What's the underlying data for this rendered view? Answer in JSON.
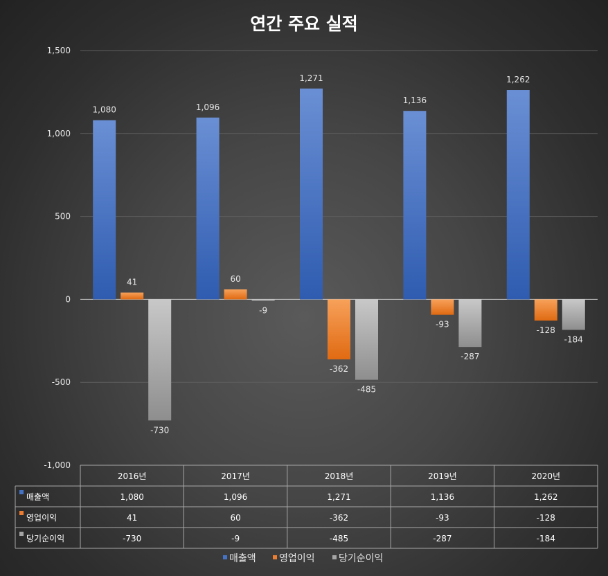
{
  "chart_data": {
    "type": "bar",
    "title": "연간 주요 실적",
    "categories": [
      "2016년",
      "2017년",
      "2018년",
      "2019년",
      "2020년"
    ],
    "series": [
      {
        "name": "매출액",
        "values": [
          1080,
          1096,
          1271,
          1136,
          1262
        ],
        "labels": [
          "1,080",
          "1,096",
          "1,271",
          "1,136",
          "1,262"
        ],
        "color": "#4472C4"
      },
      {
        "name": "영업이익",
        "values": [
          41,
          60,
          -362,
          -93,
          -128
        ],
        "labels": [
          "41",
          "60",
          "-362",
          "-93",
          "-128"
        ],
        "color": "#ED7D31"
      },
      {
        "name": "당기순이익",
        "values": [
          -730,
          -9,
          -485,
          -287,
          -184
        ],
        "labels": [
          "-730",
          "-9",
          "-485",
          "-287",
          "-184"
        ],
        "color": "#A5A5A5"
      }
    ],
    "y_ticks": [
      {
        "value": 1500,
        "label": "1,500"
      },
      {
        "value": 1000,
        "label": "1,000"
      },
      {
        "value": 500,
        "label": "500"
      },
      {
        "value": 0,
        "label": "0"
      },
      {
        "value": -500,
        "label": "-500"
      },
      {
        "value": -1000,
        "label": "-1,000"
      }
    ],
    "ylim": [
      -1000,
      1500
    ],
    "grid": true,
    "legend_position": "bottom",
    "data_table": true
  }
}
